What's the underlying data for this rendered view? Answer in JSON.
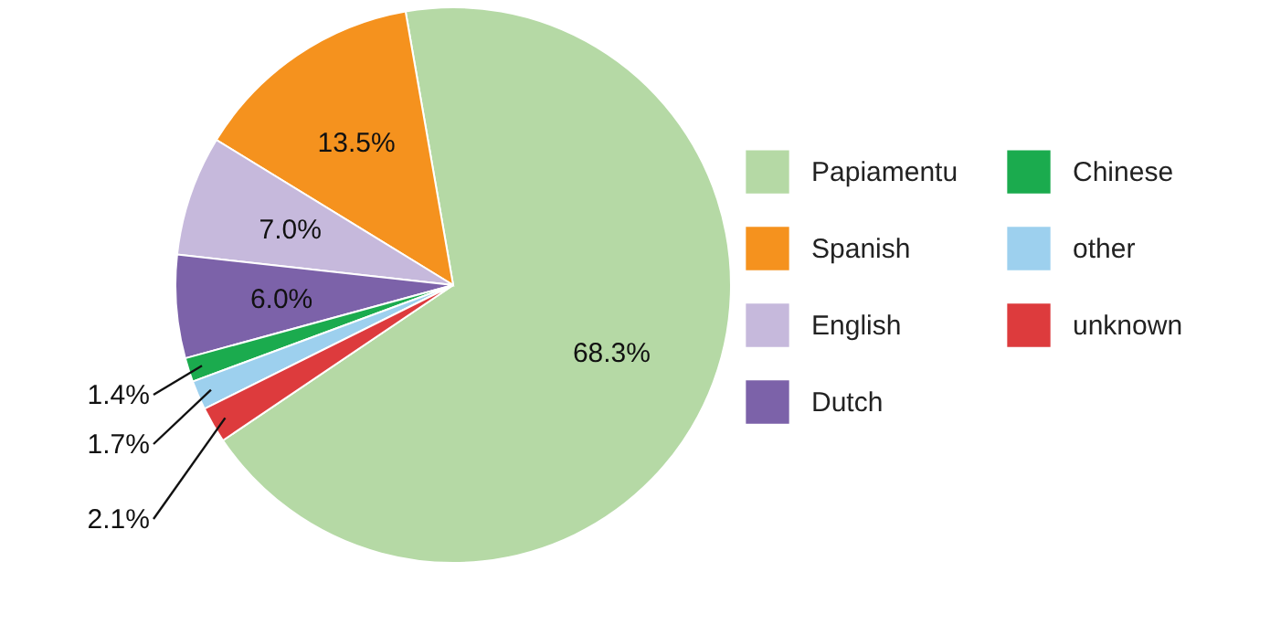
{
  "chart_data": {
    "type": "pie",
    "categories": [
      "Papiamentu",
      "Spanish",
      "English",
      "Dutch",
      "Chinese",
      "other",
      "unknown"
    ],
    "values": [
      68.3,
      13.5,
      7.0,
      6.0,
      1.4,
      1.7,
      2.1
    ],
    "value_labels": [
      "68.3%",
      "13.5%",
      "7.0%",
      "6.0%",
      "1.4%",
      "1.7%",
      "2.1%"
    ],
    "colors": [
      "#b5d9a5",
      "#f5921e",
      "#c6b9dc",
      "#7c62a9",
      "#1bab4e",
      "#9dd0ee",
      "#dd3b3d"
    ],
    "legend": "right"
  }
}
